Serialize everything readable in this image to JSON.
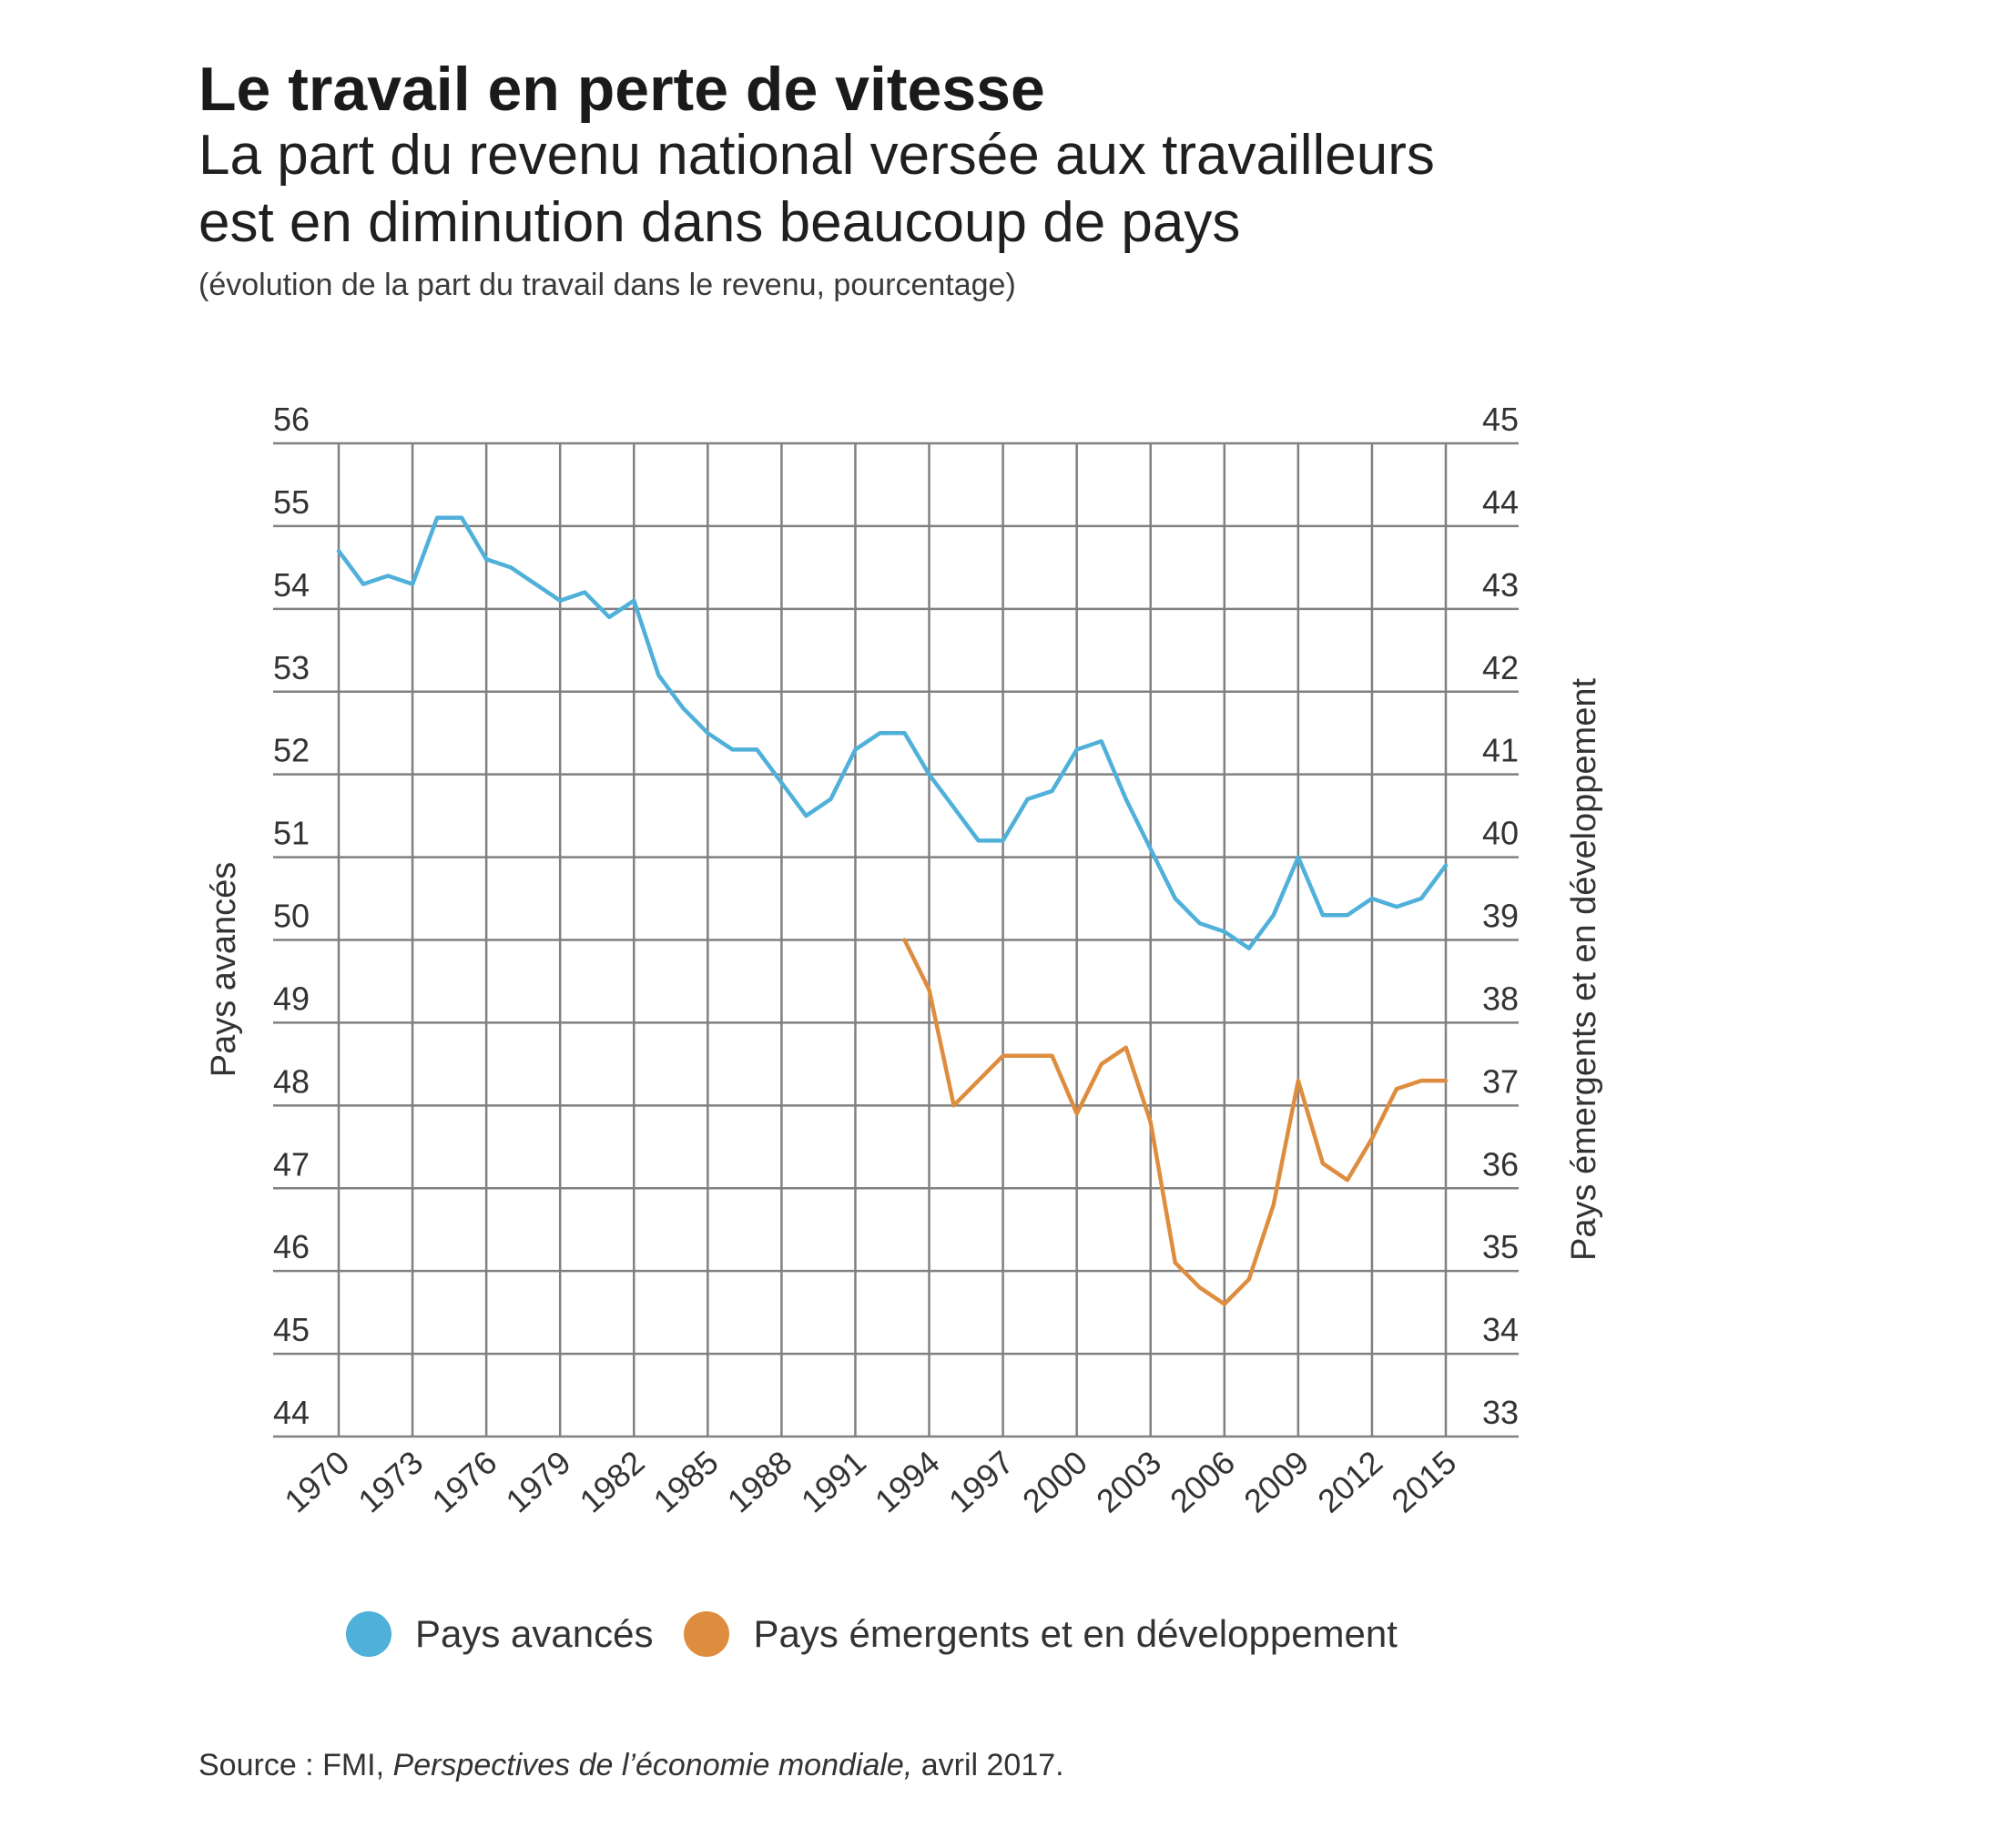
{
  "header": {
    "title": "Le travail en perte de vitesse",
    "subtitle_line1": "La part du revenu national versée aux travailleurs",
    "subtitle_line2": "est en diminution dans beaucoup de pays",
    "note": "(évolution de la part du travail dans le revenu, pourcentage)"
  },
  "source": {
    "prefix": "Source : FMI,",
    "publication": "Perspectives de l’économie mondiale,",
    "date": "avril 2017."
  },
  "colors": {
    "advanced": "#4fb0d9",
    "emerging": "#de8d3f",
    "grid": "#808080"
  },
  "chart_data": {
    "type": "line",
    "title": "Le travail en perte de vitesse",
    "x": [
      1970,
      1971,
      1972,
      1973,
      1974,
      1975,
      1976,
      1977,
      1978,
      1979,
      1980,
      1981,
      1982,
      1983,
      1984,
      1985,
      1986,
      1987,
      1988,
      1989,
      1990,
      1991,
      1992,
      1993,
      1994,
      1995,
      1996,
      1997,
      1998,
      1999,
      2000,
      2001,
      2002,
      2003,
      2004,
      2005,
      2006,
      2007,
      2008,
      2009,
      2010,
      2011,
      2012,
      2013,
      2014,
      2015
    ],
    "x_tick_labels": [
      "1970",
      "1973",
      "1976",
      "1979",
      "1982",
      "1985",
      "1988",
      "1991",
      "1994",
      "1997",
      "2000",
      "2003",
      "2006",
      "2009",
      "2012",
      "2015"
    ],
    "xlim": [
      1970,
      2015
    ],
    "left_axis": {
      "label": "Pays avancés",
      "ylim": [
        44,
        56
      ],
      "ticks": [
        "56",
        "55",
        "54",
        "53",
        "52",
        "51",
        "50",
        "49",
        "48",
        "47",
        "46",
        "45",
        "44"
      ]
    },
    "right_axis": {
      "label": "Pays émergents et en développement",
      "ylim": [
        33,
        45
      ],
      "ticks": [
        "45",
        "44",
        "43",
        "42",
        "41",
        "40",
        "39",
        "38",
        "37",
        "36",
        "35",
        "34",
        "33"
      ]
    },
    "grid": true,
    "series": [
      {
        "name": "Pays avancés",
        "axis": "left",
        "values": [
          54.7,
          54.3,
          54.4,
          54.3,
          55.1,
          55.1,
          54.6,
          54.5,
          54.3,
          54.1,
          54.2,
          53.9,
          54.1,
          53.2,
          52.8,
          52.5,
          52.3,
          52.3,
          51.9,
          51.5,
          51.7,
          52.3,
          52.5,
          52.5,
          52.0,
          51.6,
          51.2,
          51.2,
          51.7,
          51.8,
          52.3,
          52.4,
          51.7,
          51.1,
          50.5,
          50.2,
          50.1,
          49.9,
          50.3,
          51.0,
          50.3,
          50.3,
          50.5,
          50.4,
          50.5,
          50.9
        ]
      },
      {
        "name": "Pays émergents et en développement",
        "axis": "right",
        "values": [
          null,
          null,
          null,
          null,
          null,
          null,
          null,
          null,
          null,
          null,
          null,
          null,
          null,
          null,
          null,
          null,
          null,
          null,
          null,
          null,
          null,
          null,
          null,
          39.0,
          38.4,
          37.0,
          37.3,
          37.6,
          37.6,
          37.6,
          36.9,
          37.5,
          37.7,
          36.8,
          35.1,
          34.8,
          34.6,
          34.9,
          35.8,
          37.3,
          36.3,
          36.1,
          36.6,
          37.2,
          37.3,
          37.3
        ]
      }
    ],
    "legend": [
      "Pays avancés",
      "Pays émergents et en développement"
    ],
    "legend_position": "bottom"
  }
}
